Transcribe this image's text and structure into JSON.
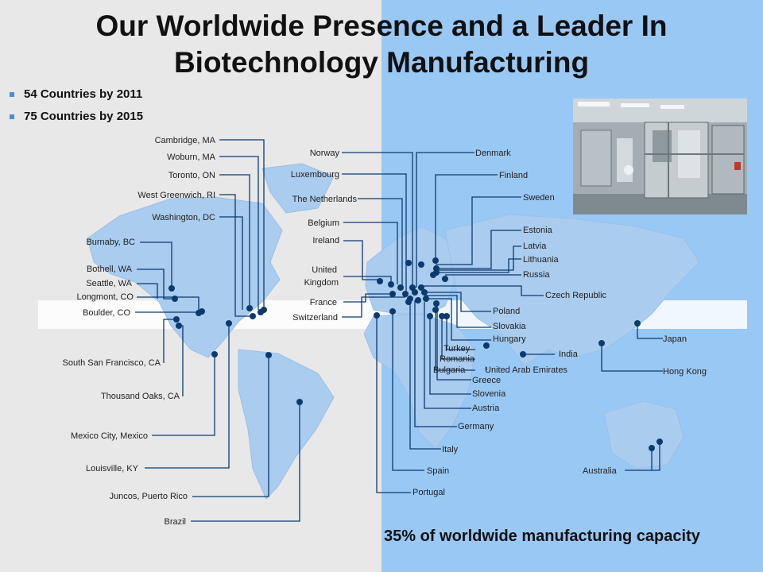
{
  "title": {
    "line1": "Our Worldwide Presence and a Leader In",
    "line2": "Biotechnology Manufacturing"
  },
  "bullets": [
    "54 Countries by 2011",
    "75 Countries by 2015"
  ],
  "caption": "35% of worldwide manufacturing capacity",
  "photo": {
    "description_icon": "bioreactor-facility-photo"
  },
  "colors": {
    "left_bg": "#e8e8e8",
    "right_bg": "#99c8f5",
    "land": "#a9ccef",
    "marker": "#0d3a6e",
    "bullet": "#4a8fd4"
  },
  "locations_americas": [
    "Cambridge, MA",
    "Woburn, MA",
    "Toronto, ON",
    "West Greenwich,  RI",
    "Washington, DC",
    "Burnaby, BC",
    "Bothell, WA",
    "Seattle, WA",
    "Longmont, CO",
    "Boulder, CO",
    "South San Francisco, CA",
    "Thousand Oaks, CA",
    "Mexico City, Mexico",
    "Louisville, KY",
    "Juncos, Puerto Rico",
    "Brazil"
  ],
  "locations_europe_left": [
    "Norway",
    "Luxembourg",
    "The Netherlands",
    "Belgium",
    "Ireland",
    "United",
    "Kingdom",
    "France",
    "Switzerland"
  ],
  "locations_europe_right": [
    "Denmark",
    "Finland",
    "Sweden",
    "Estonia",
    "Latvia",
    "Lithuania",
    "Russia",
    "Czech Republic",
    "Poland",
    "Slovakia",
    "Hungary",
    "Turkey",
    "Romania",
    "Bulgaria",
    "United Arab Emirates",
    "Greece",
    "Slovenia",
    "Austria",
    "Germany",
    "Italy",
    "Spain",
    "Portugal"
  ],
  "locations_asia": [
    "India",
    "Japan",
    "Hong Kong",
    "Australia"
  ]
}
